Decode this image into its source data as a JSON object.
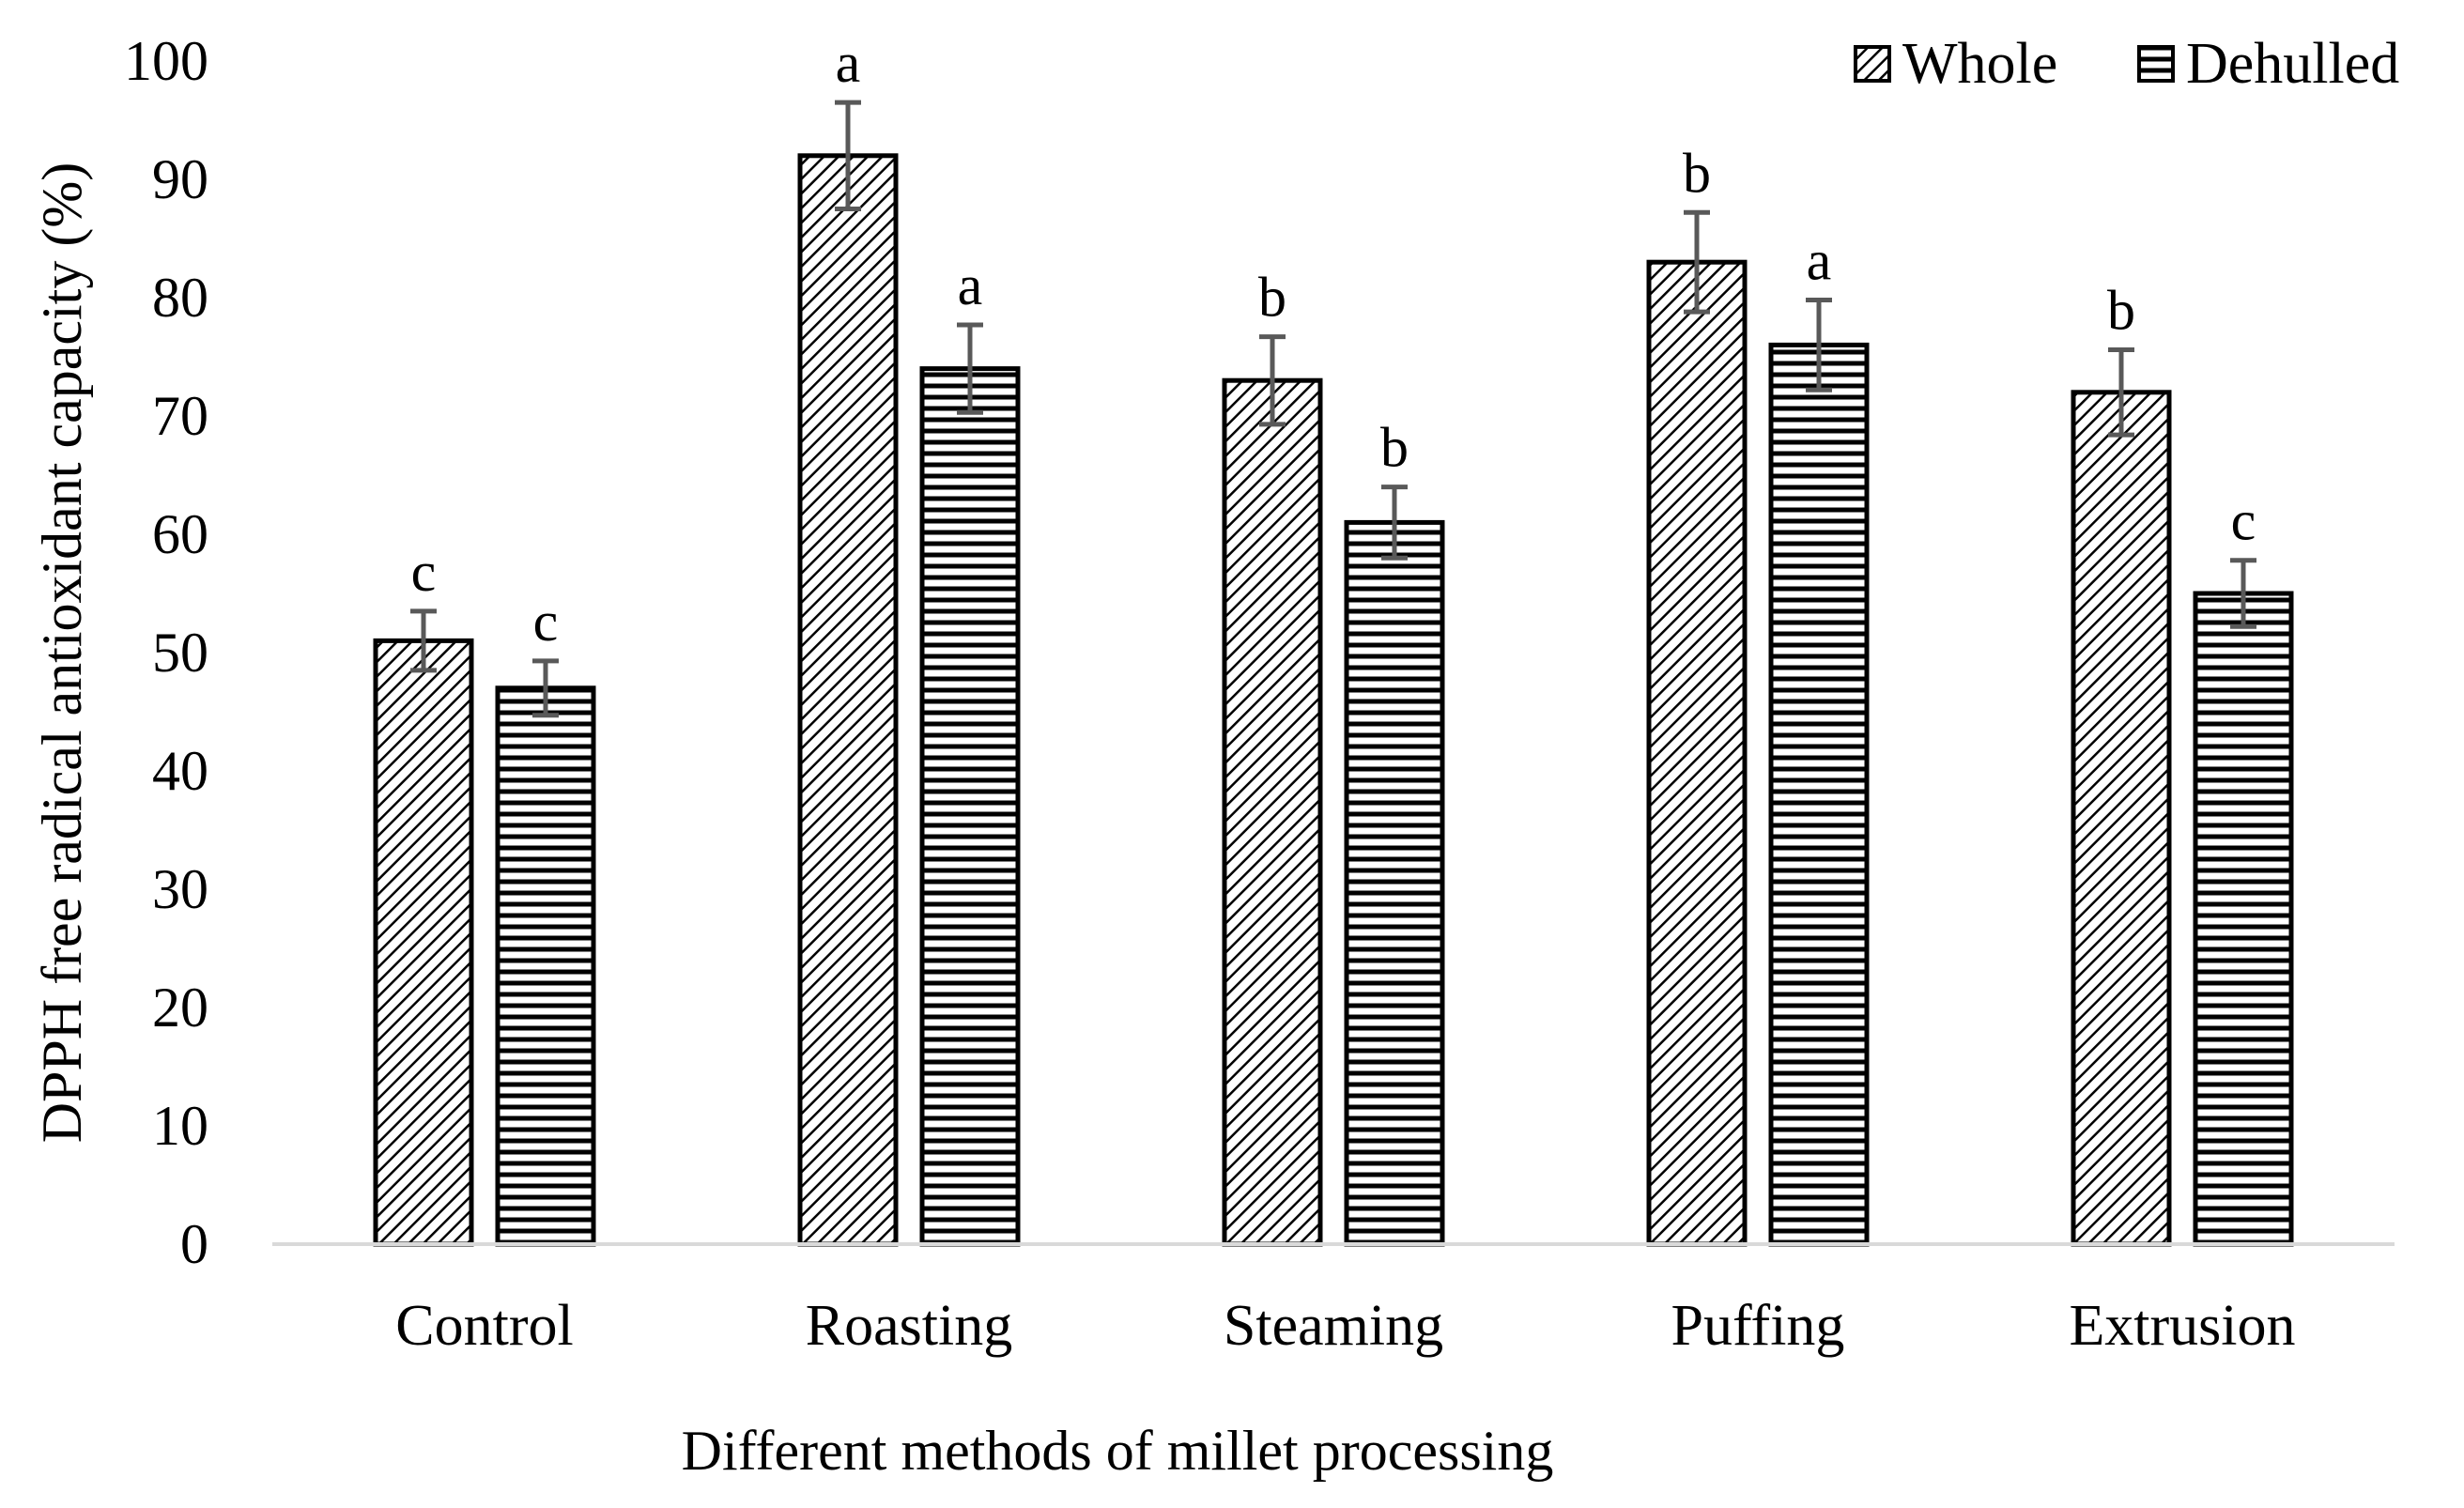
{
  "chart_data": {
    "type": "bar",
    "title": "",
    "xlabel": "Different methods of millet processing",
    "ylabel": "DPPH free radical antioxidant capacity (%)",
    "ylim": [
      0,
      100
    ],
    "yticks": [
      "0",
      "10",
      "20",
      "30",
      "40",
      "50",
      "60",
      "70",
      "80",
      "90",
      "100"
    ],
    "categories": [
      "Control",
      "Roasting",
      "Steaming",
      "Puffing",
      "Extrusion"
    ],
    "grid": false,
    "legend_position": "top-right",
    "series": [
      {
        "name": "Whole",
        "pattern": "diagonal-hatch",
        "values": [
          51,
          92,
          73,
          83,
          72
        ],
        "errors": [
          2.5,
          4.5,
          3.7,
          4.2,
          3.6
        ],
        "letters": [
          "c",
          "a",
          "b",
          "b",
          "b"
        ]
      },
      {
        "name": "Dehulled",
        "pattern": "horizontal-lines",
        "values": [
          47,
          74,
          61,
          76,
          55
        ],
        "errors": [
          2.3,
          3.7,
          3.0,
          3.8,
          2.8
        ],
        "letters": [
          "c",
          "a",
          "b",
          "a",
          "c"
        ]
      }
    ],
    "colors": {
      "bar_stroke": "#000000",
      "bar_fill": "#ffffff",
      "error_bar": "#595959",
      "axis_line": "#d9d9d9"
    }
  }
}
